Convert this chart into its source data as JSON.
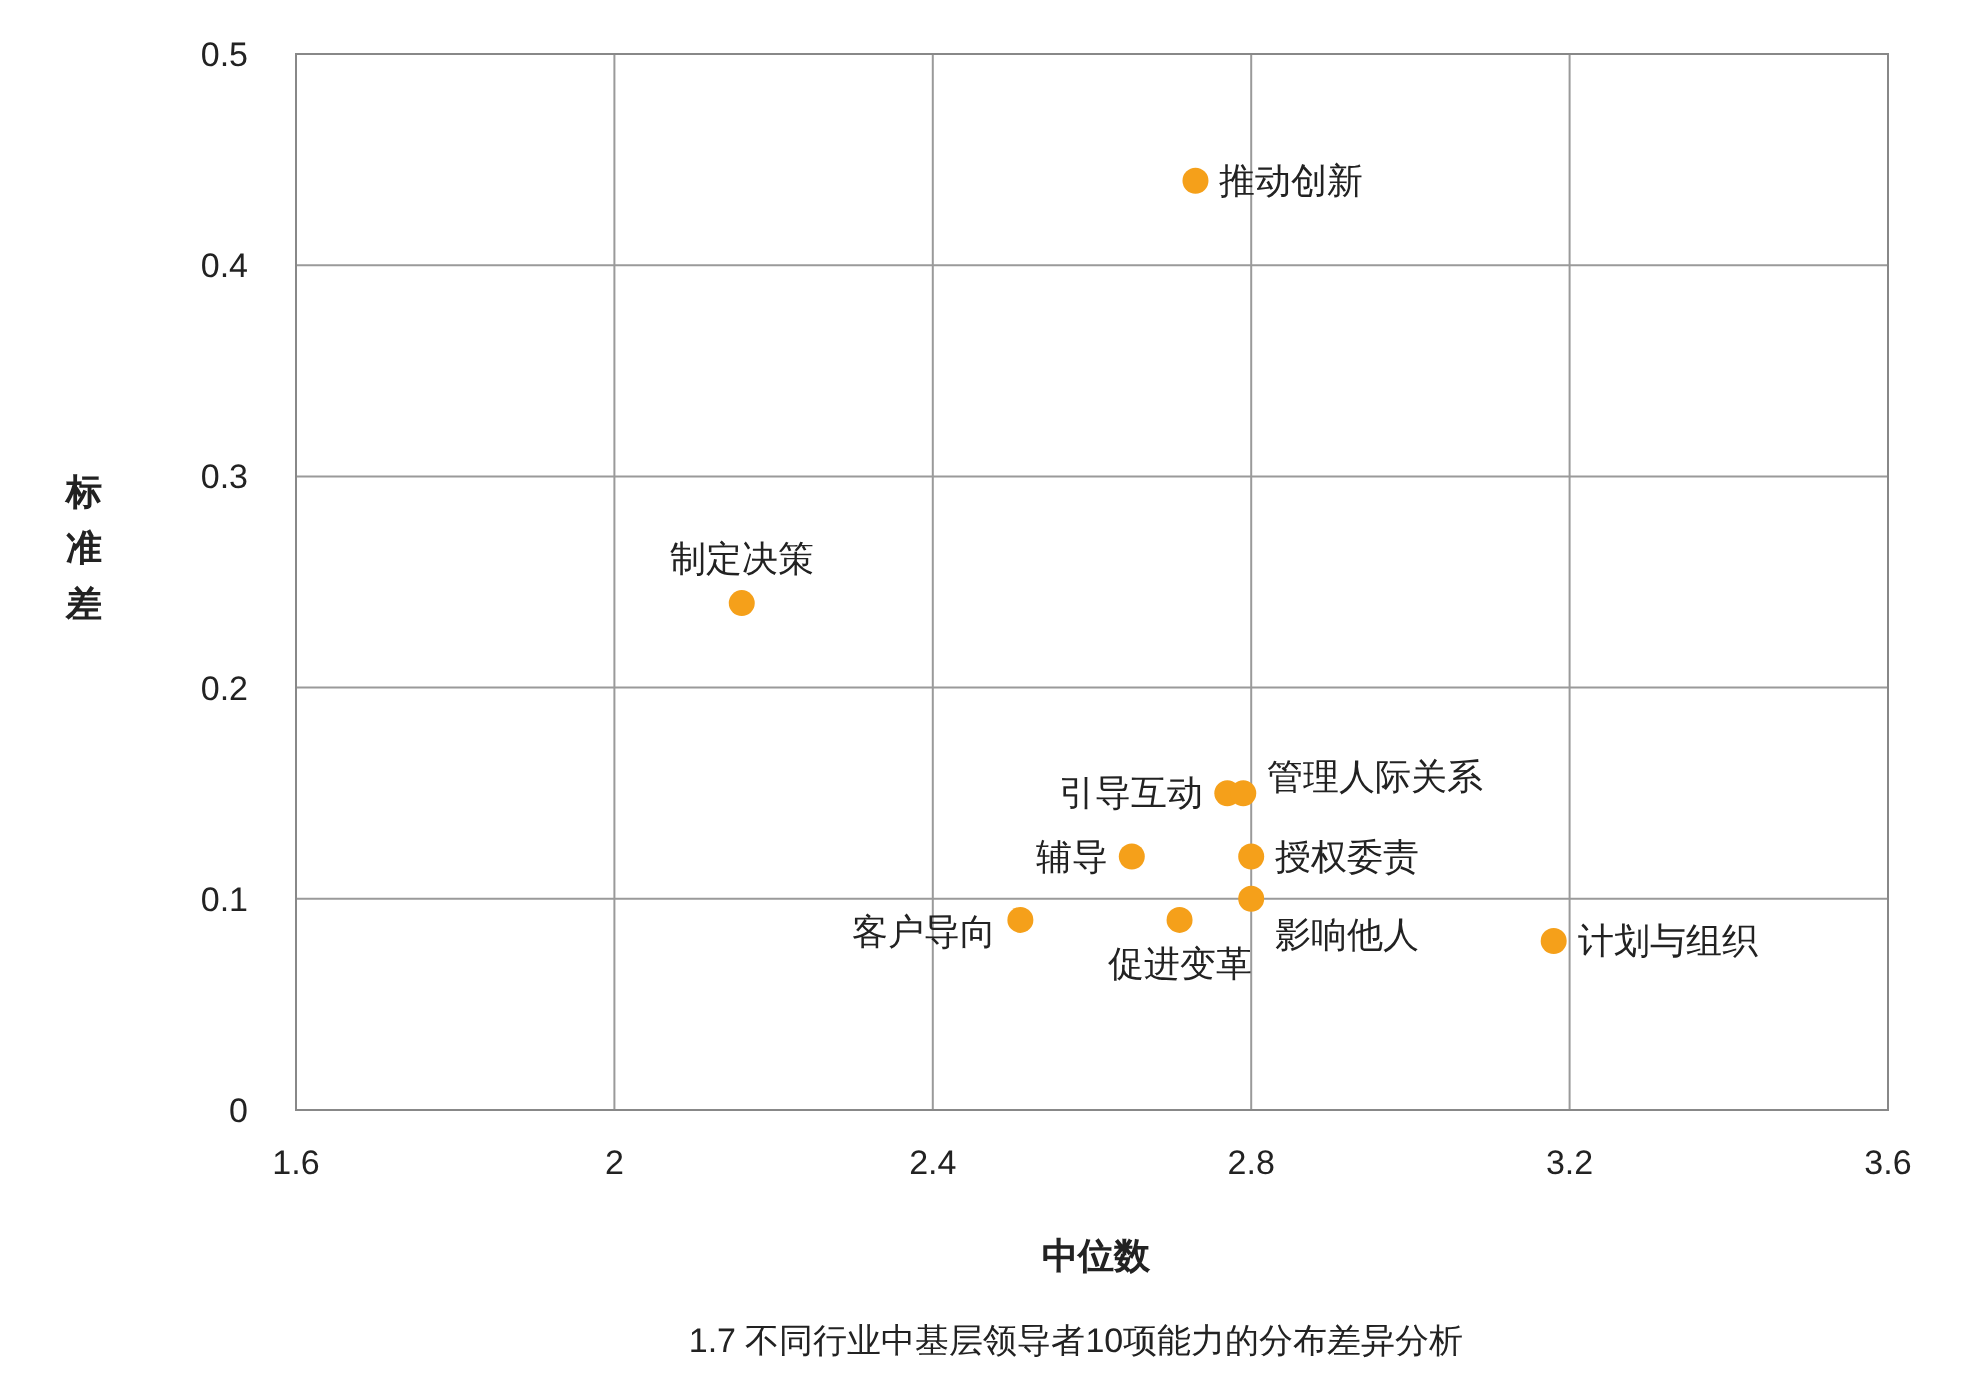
{
  "chart_data": {
    "type": "scatter",
    "title": "1.7 不同行业中基层领导者10项能力的分布差异分析",
    "xlabel": "中位数",
    "ylabel": "标准差",
    "xlim": [
      1.6,
      3.6
    ],
    "xticks": [
      1.6,
      2,
      2.4,
      2.8,
      3.2,
      3.6
    ],
    "ylim": [
      0,
      0.5
    ],
    "yticks": [
      0,
      0.1,
      0.2,
      0.3,
      0.4,
      0.5
    ],
    "grid": true,
    "marker": "circle",
    "series": [
      {
        "name": "推动创新",
        "color": "#f5a01a",
        "x": [
          2.73
        ],
        "values": [
          0.44
        ]
      },
      {
        "name": "制定决策",
        "color": "#f5a01a",
        "x": [
          2.16
        ],
        "values": [
          0.24
        ]
      },
      {
        "name": "引导互动",
        "color": "#f5a01a",
        "x": [
          2.77
        ],
        "values": [
          0.15
        ]
      },
      {
        "name": "管理人际关系",
        "color": "#f5a01a",
        "x": [
          2.79
        ],
        "values": [
          0.15
        ]
      },
      {
        "name": "辅导",
        "color": "#f5a01a",
        "x": [
          2.65
        ],
        "values": [
          0.12
        ]
      },
      {
        "name": "授权委责",
        "color": "#f5a01a",
        "x": [
          2.8
        ],
        "values": [
          0.12
        ]
      },
      {
        "name": "影响他人",
        "color": "#f5a01a",
        "x": [
          2.8
        ],
        "values": [
          0.1
        ]
      },
      {
        "name": "客户导向",
        "color": "#f5a01a",
        "x": [
          2.51
        ],
        "values": [
          0.09
        ]
      },
      {
        "name": "促进变革",
        "color": "#f5a01a",
        "x": [
          2.71
        ],
        "values": [
          0.09
        ]
      },
      {
        "name": "计划与组织",
        "color": "#f5a01a",
        "x": [
          3.18
        ],
        "values": [
          0.08
        ]
      }
    ]
  }
}
